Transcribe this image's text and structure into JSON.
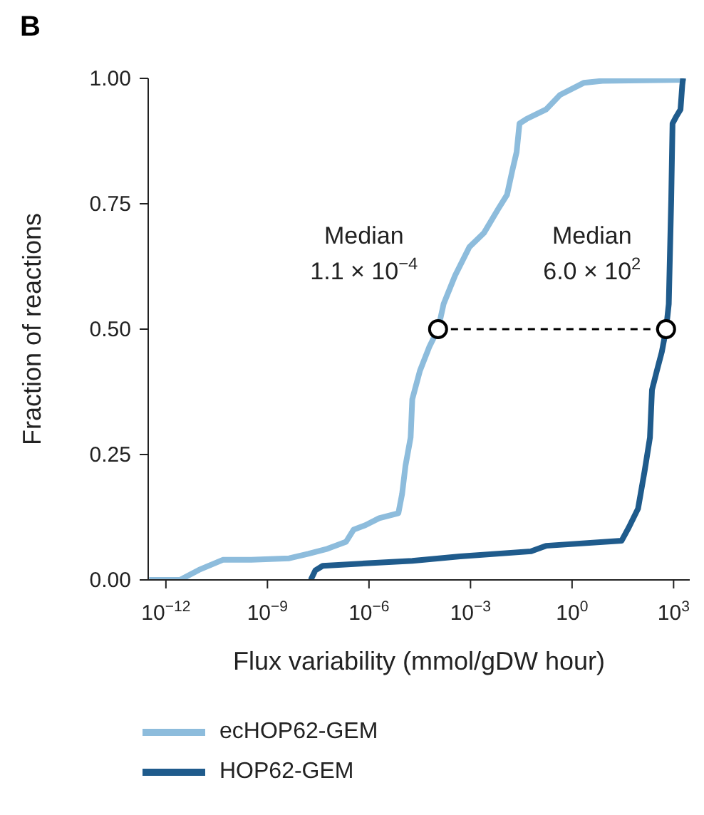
{
  "chart_data": {
    "type": "line",
    "title": "B",
    "xlabel": "Flux variability (mmol/gDW hour)",
    "ylabel": "Fraction of reactions",
    "log": "x",
    "xlim": [
      3e-13,
      3000
    ],
    "ylim": [
      0,
      1
    ],
    "xticks": [
      {
        "value": 1e-12,
        "label": "10$^{−12}$"
      },
      {
        "value": 1e-09,
        "label": "10$^{−9}$"
      },
      {
        "value": 1e-06,
        "label": "10$^{−6}$"
      },
      {
        "value": 0.001,
        "label": "10$^{−3}$"
      },
      {
        "value": 1,
        "label": "10$^{0}$"
      },
      {
        "value": 1000,
        "label": "10$^{3}$"
      }
    ],
    "yticks": [
      {
        "value": 0,
        "label": "0.00"
      },
      {
        "value": 0.25,
        "label": "0.25"
      },
      {
        "value": 0.5,
        "label": "0.50"
      },
      {
        "value": 0.75,
        "label": "0.75"
      },
      {
        "value": 1,
        "label": "1.00"
      }
    ],
    "grid": false,
    "legend": "bottom",
    "marker": "none",
    "line_style": "solid",
    "series": [
      {
        "name": "ecHOP62-GEM",
        "color": "#8dbcdc",
        "x": [
          3.2e-13,
          2.6e-12,
          9.5e-12,
          4.8e-11,
          3.3e-10,
          4.4e-09,
          1.6e-08,
          5.9e-08,
          2.1e-07,
          3.5e-07,
          7.8e-07,
          2e-06,
          7.4e-06,
          9.5e-06,
          1.2e-05,
          1.7e-05,
          1.9e-05,
          3.2e-05,
          6e-05,
          0.00011,
          0.00016,
          0.00035,
          0.00093,
          0.0025,
          0.0065,
          0.012,
          0.017,
          0.023,
          0.028,
          0.045,
          0.17,
          0.44,
          2.2,
          7.9,
          1900,
          1900
        ],
        "values": [
          0,
          0,
          0.02,
          0.04,
          0.04,
          0.043,
          0.052,
          0.062,
          0.076,
          0.1,
          0.109,
          0.123,
          0.133,
          0.171,
          0.228,
          0.284,
          0.36,
          0.417,
          0.464,
          0.5,
          0.55,
          0.607,
          0.664,
          0.692,
          0.739,
          0.768,
          0.815,
          0.853,
          0.91,
          0.919,
          0.938,
          0.967,
          0.991,
          0.995,
          0.997,
          1
        ]
      },
      {
        "name": "HOP62-GEM",
        "color": "#1f5b8c",
        "x": [
          1.9e-08,
          2.6e-08,
          4.3e-08,
          7.8e-07,
          1.9e-05,
          0.00049,
          0.062,
          0.17,
          29,
          47,
          89,
          140,
          200,
          230,
          320,
          450,
          600,
          720,
          850,
          930,
          1200,
          1600,
          1800,
          1900
        ],
        "values": [
          0,
          0.019,
          0.028,
          0.033,
          0.038,
          0.047,
          0.057,
          0.068,
          0.078,
          0.104,
          0.142,
          0.218,
          0.284,
          0.379,
          0.417,
          0.455,
          0.5,
          0.55,
          0.758,
          0.91,
          0.924,
          0.938,
          0.986,
          1
        ]
      },
      {
        "type": "line",
        "color": "#000000",
        "x": [
          0.00011,
          600
        ],
        "values": [
          0.5,
          0.5
        ],
        "marker": "circle",
        "line_style": "dashed"
      }
    ],
    "annotations": [
      {
        "text": "Median\n1.1 × 10$^{−4}$",
        "x": 0.00011,
        "y": 0.5
      },
      {
        "text": "Median\n6.0 × 10$^{2}$",
        "x": 600,
        "y": 0.5
      }
    ]
  }
}
